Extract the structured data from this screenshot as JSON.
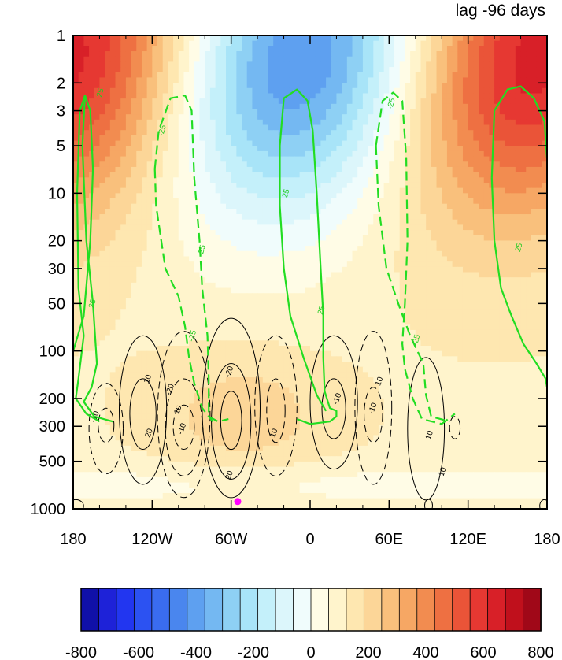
{
  "chart_data": {
    "type": "heatmap",
    "title": "lag -96 days",
    "x": {
      "tick_labels": [
        "180",
        "120W",
        "60W",
        "0",
        "60E",
        "120E",
        "180"
      ],
      "range": [
        -180,
        180
      ]
    },
    "y": {
      "scale": "log",
      "reversed": true,
      "tick_values": [
        1,
        2,
        3,
        5,
        10,
        20,
        30,
        50,
        100,
        200,
        300,
        500,
        1000
      ],
      "tick_labels": [
        "1",
        "2",
        "3",
        "5",
        "10",
        "20",
        "30",
        "50",
        "100",
        "200",
        "300",
        "500",
        "1000"
      ],
      "range": [
        1,
        1000
      ]
    },
    "colorbar": {
      "tick_labels": [
        "-800",
        "-600",
        "-400",
        "-200",
        "0",
        "200",
        "400",
        "600",
        "800"
      ],
      "range": [
        -800,
        800
      ],
      "interval": 50,
      "placement": "bottom"
    },
    "color_shading": {
      "description_levels": [
        -800,
        800
      ],
      "field_pattern": "zonal wavenumber-1 dipole: negative centered near 15W, positive near 160W and 165E"
    },
    "contours_black": {
      "levels": [
        -20,
        -10,
        10,
        20
      ],
      "labels": [
        "10",
        "-10",
        "20",
        "-20",
        "10",
        "-10",
        "-20",
        "20",
        "10",
        "-10",
        "10",
        "-10",
        "10",
        "10"
      ]
    },
    "contours_green": {
      "levels": [
        -25,
        25
      ],
      "labels": [
        "25",
        "25",
        "-25",
        "-25",
        "-25",
        "25",
        "25",
        "-25",
        "-25",
        "25"
      ]
    },
    "marker": {
      "lon": -55,
      "pressure": 900,
      "color": "#ff00ff"
    }
  }
}
